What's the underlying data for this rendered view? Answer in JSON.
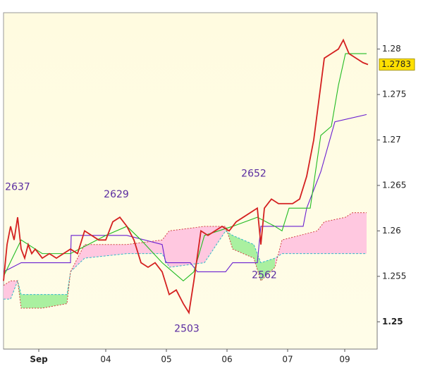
{
  "chart_data": {
    "type": "line",
    "xlim": [
      0,
      530
    ],
    "xticks": [
      {
        "value": 50,
        "label": "Sep"
      },
      {
        "value": 145,
        "label": "04"
      },
      {
        "value": 231,
        "label": "05"
      },
      {
        "value": 317,
        "label": "06"
      },
      {
        "value": 403,
        "label": "07"
      },
      {
        "value": 484,
        "label": "09"
      }
    ],
    "ylim": [
      1.247,
      1.284
    ],
    "yticks": [
      1.25,
      1.255,
      1.26,
      1.265,
      1.27,
      1.275,
      1.28
    ],
    "last_price": 1.2783,
    "series": [
      {
        "color": "#d42020",
        "x": [
          0,
          5,
          10,
          15,
          20,
          25,
          30,
          35,
          40,
          45,
          55,
          65,
          75,
          85,
          95,
          105,
          115,
          125,
          135,
          145,
          155,
          165,
          175,
          185,
          195,
          205,
          215,
          225,
          235,
          245,
          255,
          263,
          270,
          280,
          290,
          300,
          310,
          320,
          330,
          340,
          350,
          360,
          365,
          370,
          380,
          390,
          400,
          410,
          420,
          430,
          440,
          450,
          455,
          465,
          475,
          482,
          490,
          500,
          510,
          517
        ],
        "values": [
          1.2545,
          1.2585,
          1.2605,
          1.259,
          1.2615,
          1.258,
          1.257,
          1.2585,
          1.2575,
          1.258,
          1.257,
          1.2575,
          1.257,
          1.2575,
          1.258,
          1.2575,
          1.26,
          1.2595,
          1.259,
          1.259,
          1.261,
          1.2615,
          1.2605,
          1.259,
          1.2565,
          1.256,
          1.2565,
          1.2555,
          1.253,
          1.2535,
          1.252,
          1.251,
          1.2545,
          1.26,
          1.2595,
          1.26,
          1.2605,
          1.26,
          1.261,
          1.2615,
          1.262,
          1.2625,
          1.2585,
          1.2625,
          1.2635,
          1.263,
          1.263,
          1.263,
          1.2635,
          1.266,
          1.27,
          1.276,
          1.279,
          1.2795,
          1.28,
          1.281,
          1.2795,
          1.279,
          1.2785,
          1.2783
        ]
      },
      {
        "color": "#22bb22",
        "x": [
          0,
          25,
          55,
          95,
          145,
          175,
          195,
          225,
          255,
          270,
          285,
          325,
          360,
          385,
          395,
          405,
          435,
          450,
          465,
          475,
          485,
          515
        ],
        "values": [
          1.255,
          1.259,
          1.2575,
          1.2575,
          1.2595,
          1.2605,
          1.259,
          1.2565,
          1.2545,
          1.2555,
          1.2595,
          1.2605,
          1.2615,
          1.2605,
          1.26,
          1.2625,
          1.2625,
          1.2705,
          1.2715,
          1.276,
          1.2795,
          1.2795
        ]
      },
      {
        "color": "#6a1fd0",
        "x": [
          0,
          25,
          95,
          96,
          175,
          225,
          230,
          265,
          275,
          315,
          325,
          360,
          365,
          425,
          430,
          450,
          470,
          515
        ],
        "values": [
          1.2555,
          1.2565,
          1.2565,
          1.2595,
          1.2595,
          1.2585,
          1.2565,
          1.2565,
          1.2555,
          1.2555,
          1.2565,
          1.2565,
          1.2605,
          1.2605,
          1.2625,
          1.2665,
          1.272,
          1.2728
        ]
      }
    ],
    "cloud": {
      "x": [
        0,
        10,
        20,
        25,
        55,
        90,
        95,
        115,
        175,
        225,
        235,
        285,
        315,
        325,
        355,
        365,
        385,
        395,
        445,
        455,
        485,
        495,
        515
      ],
      "span_a": [
        1.2525,
        1.2525,
        1.2545,
        1.253,
        1.253,
        1.253,
        1.2555,
        1.257,
        1.2575,
        1.2575,
        1.256,
        1.2565,
        1.26,
        1.2595,
        1.2585,
        1.2565,
        1.257,
        1.2575,
        1.2575,
        1.2575,
        1.2575,
        1.2575,
        1.2575
      ],
      "span_b": [
        1.254,
        1.2545,
        1.2545,
        1.2515,
        1.2515,
        1.252,
        1.2555,
        1.2585,
        1.2585,
        1.259,
        1.26,
        1.2605,
        1.2605,
        1.258,
        1.257,
        1.2545,
        1.256,
        1.259,
        1.26,
        1.261,
        1.2615,
        1.262,
        1.262
      ],
      "up_color": "#ffc8e0",
      "down_color": "#aaf0a0",
      "a_color": "#30b8c8",
      "b_color": "#d04040"
    },
    "annotations": [
      {
        "text": "2637",
        "x": 20,
        "y": 1.2637
      },
      {
        "text": "2629",
        "x": 160,
        "y": 1.2629
      },
      {
        "text": "2652",
        "x": 355,
        "y": 1.2652
      },
      {
        "text": "2503",
        "x": 260,
        "y": 1.2503
      },
      {
        "text": "2562",
        "x": 370,
        "y": 1.2562
      }
    ]
  }
}
